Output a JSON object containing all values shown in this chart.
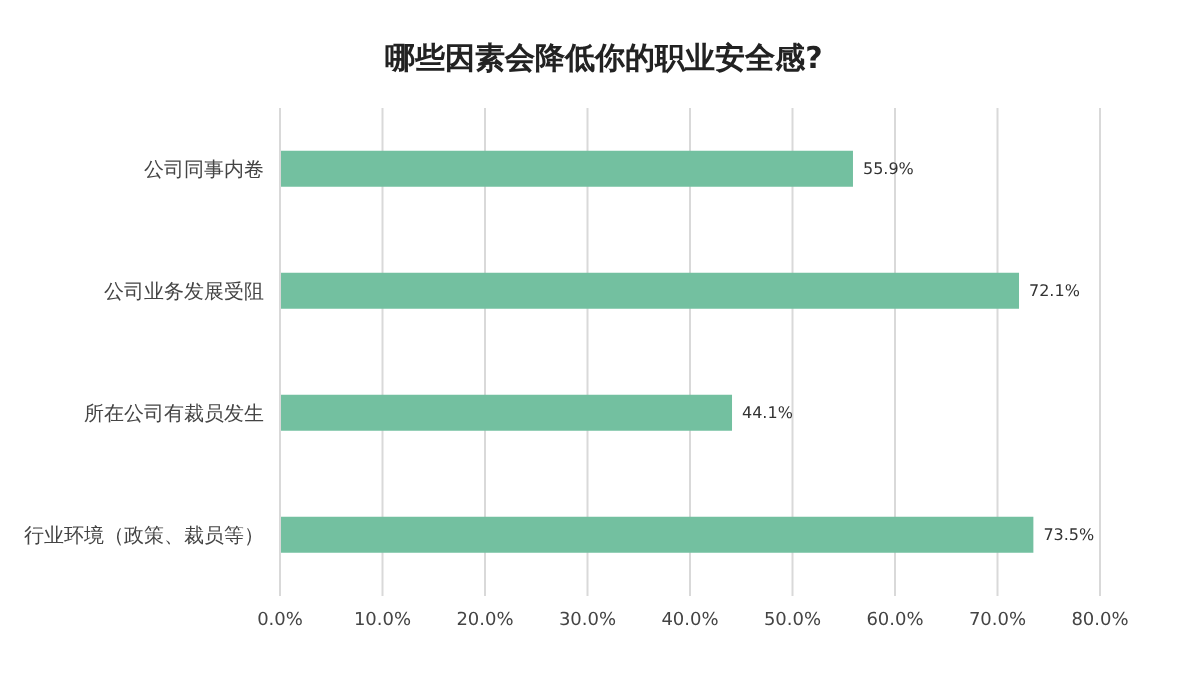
{
  "chart_data": {
    "type": "bar",
    "orientation": "horizontal",
    "title": "哪些因素会降低你的职业安全感?",
    "categories": [
      "公司同事内卷",
      "公司业务发展受阻",
      "所在公司有裁员发生",
      "行业环境（政策、裁员等）"
    ],
    "values": [
      55.9,
      72.1,
      44.1,
      73.5
    ],
    "value_labels": [
      "55.9%",
      "72.1%",
      "44.1%",
      "73.5%"
    ],
    "color": "#73c0a0",
    "xlim": [
      0,
      80
    ],
    "xticks": [
      {
        "value": 0,
        "label": "0.0%"
      },
      {
        "value": 10,
        "label": "10.0%"
      },
      {
        "value": 20,
        "label": "20.0%"
      },
      {
        "value": 30,
        "label": "30.0%"
      },
      {
        "value": 40,
        "label": "40.0%"
      },
      {
        "value": 50,
        "label": "50.0%"
      },
      {
        "value": 60,
        "label": "60.0%"
      },
      {
        "value": 70,
        "label": "70.0%"
      },
      {
        "value": 80,
        "label": "80.0%"
      }
    ],
    "grid": "x"
  }
}
